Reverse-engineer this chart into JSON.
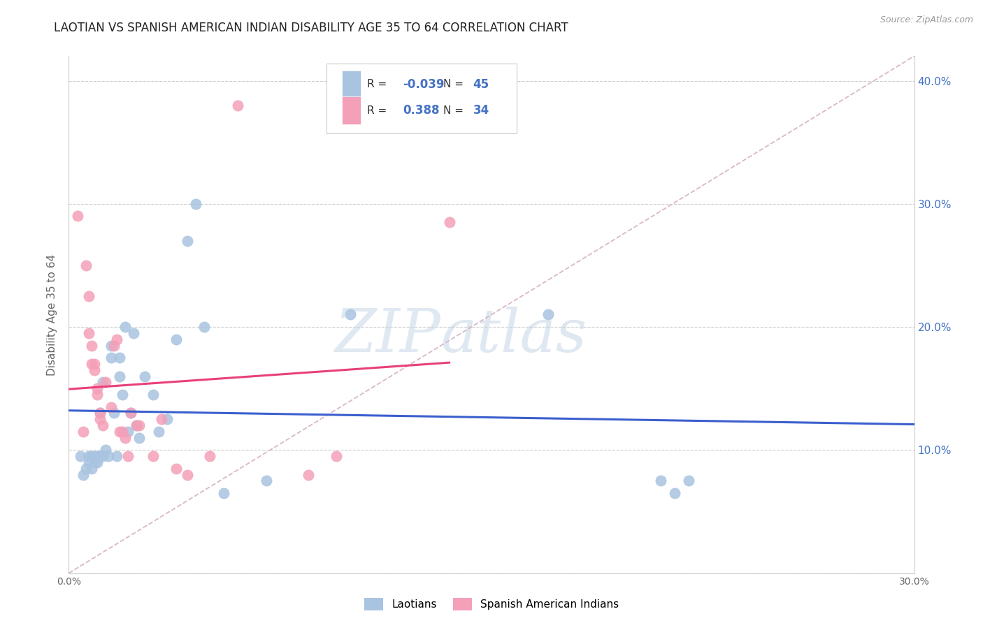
{
  "title": "LAOTIAN VS SPANISH AMERICAN INDIAN DISABILITY AGE 35 TO 64 CORRELATION CHART",
  "source": "Source: ZipAtlas.com",
  "ylabel": "Disability Age 35 to 64",
  "xlim": [
    0.0,
    0.3
  ],
  "ylim": [
    0.0,
    0.42
  ],
  "xticks": [
    0.0,
    0.05,
    0.1,
    0.15,
    0.2,
    0.25,
    0.3
  ],
  "yticks": [
    0.0,
    0.1,
    0.2,
    0.3,
    0.4
  ],
  "right_ytick_labels": [
    "",
    "10.0%",
    "20.0%",
    "30.0%",
    "40.0%"
  ],
  "background_color": "#ffffff",
  "watermark_zip": "ZIP",
  "watermark_atlas": "atlas",
  "blue_color": "#a8c4e0",
  "pink_color": "#f4a0b8",
  "line_blue": "#3a5fcd",
  "line_pink": "#e8407a",
  "diag_color": "#d8b8c8",
  "legend_r1_label": "R = ",
  "legend_r1_val": "-0.039",
  "legend_n1_label": "N = ",
  "legend_n1_val": "45",
  "legend_r2_label": "R =  ",
  "legend_r2_val": "0.388",
  "legend_n2_label": "N = ",
  "legend_n2_val": "34",
  "laotian_x": [
    0.004,
    0.005,
    0.006,
    0.007,
    0.007,
    0.008,
    0.008,
    0.009,
    0.009,
    0.01,
    0.01,
    0.011,
    0.011,
    0.012,
    0.012,
    0.013,
    0.014,
    0.015,
    0.015,
    0.016,
    0.017,
    0.018,
    0.018,
    0.019,
    0.02,
    0.021,
    0.022,
    0.023,
    0.024,
    0.025,
    0.027,
    0.03,
    0.032,
    0.035,
    0.038,
    0.042,
    0.045,
    0.048,
    0.055,
    0.07,
    0.1,
    0.17,
    0.21,
    0.215,
    0.22
  ],
  "laotian_y": [
    0.095,
    0.08,
    0.085,
    0.09,
    0.095,
    0.085,
    0.095,
    0.09,
    0.095,
    0.09,
    0.095,
    0.095,
    0.13,
    0.155,
    0.095,
    0.1,
    0.095,
    0.175,
    0.185,
    0.13,
    0.095,
    0.16,
    0.175,
    0.145,
    0.2,
    0.115,
    0.13,
    0.195,
    0.12,
    0.11,
    0.16,
    0.145,
    0.115,
    0.125,
    0.19,
    0.27,
    0.3,
    0.2,
    0.065,
    0.075,
    0.21,
    0.21,
    0.075,
    0.065,
    0.075
  ],
  "spanish_x": [
    0.003,
    0.005,
    0.006,
    0.007,
    0.007,
    0.008,
    0.008,
    0.009,
    0.009,
    0.01,
    0.01,
    0.011,
    0.011,
    0.012,
    0.013,
    0.015,
    0.016,
    0.017,
    0.018,
    0.019,
    0.02,
    0.021,
    0.022,
    0.024,
    0.025,
    0.03,
    0.033,
    0.038,
    0.042,
    0.05,
    0.06,
    0.085,
    0.095,
    0.135
  ],
  "spanish_y": [
    0.29,
    0.115,
    0.25,
    0.195,
    0.225,
    0.17,
    0.185,
    0.165,
    0.17,
    0.145,
    0.15,
    0.13,
    0.125,
    0.12,
    0.155,
    0.135,
    0.185,
    0.19,
    0.115,
    0.115,
    0.11,
    0.095,
    0.13,
    0.12,
    0.12,
    0.095,
    0.125,
    0.085,
    0.08,
    0.095,
    0.38,
    0.08,
    0.095,
    0.285
  ]
}
